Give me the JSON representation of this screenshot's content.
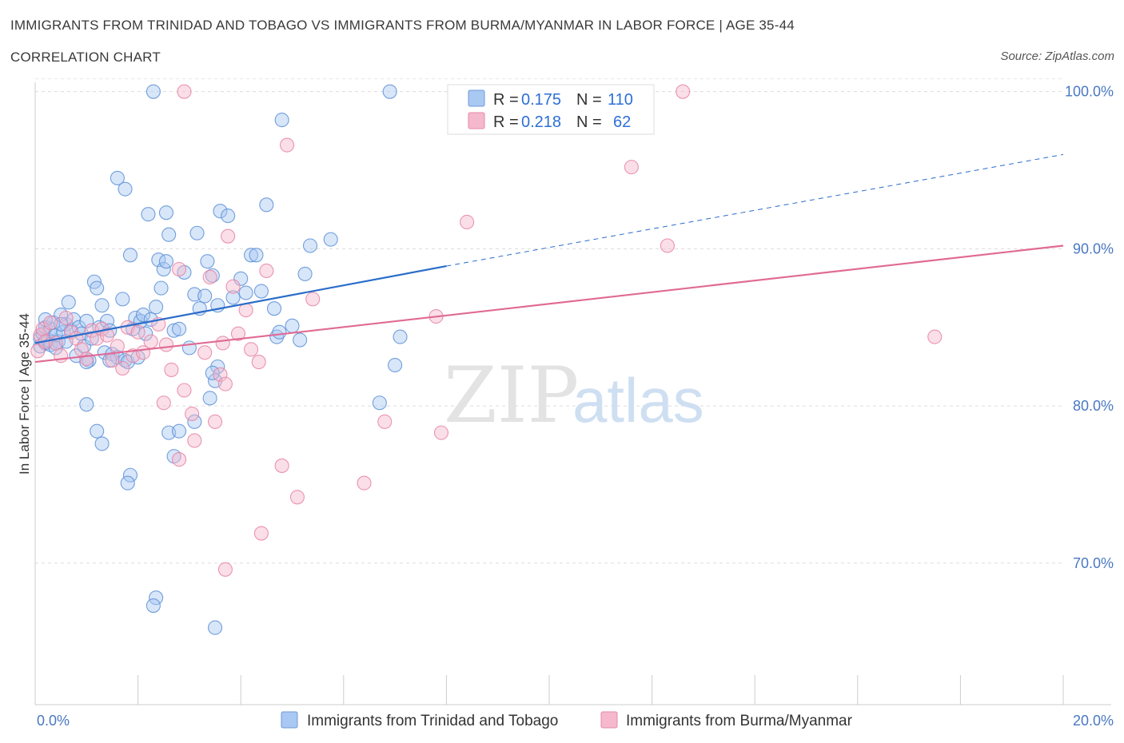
{
  "header": {
    "title": "IMMIGRANTS FROM TRINIDAD AND TOBAGO VS IMMIGRANTS FROM BURMA/MYANMAR IN LABOR FORCE | AGE 35-44",
    "subtitle": "CORRELATION CHART",
    "source": "Source: ZipAtlas.com"
  },
  "watermark": {
    "zip": "ZIP",
    "atlas": "atlas"
  },
  "legend": {
    "r_label": "R =",
    "n_label": "N =",
    "rows": [
      {
        "r": "0.175",
        "n": "110",
        "color": "#a9c8f2"
      },
      {
        "r": "0.218",
        "n": "62",
        "color": "#f5b8cc"
      }
    ]
  },
  "chart_data": {
    "type": "scatter",
    "xlabel": "",
    "ylabel": "In Labor Force | Age 35-44",
    "xlim": [
      0,
      20
    ],
    "ylim": [
      61,
      101
    ],
    "x_tick_labels": [
      "0.0%",
      "20.0%"
    ],
    "y_ticks": [
      70,
      80,
      90,
      100
    ],
    "y_tick_labels": [
      "70.0%",
      "80.0%",
      "90.0%",
      "100.0%"
    ],
    "grid": true,
    "legend_position": "bottom",
    "series": [
      {
        "name": "Immigrants from Trinidad and Tobago",
        "color": "#5b8fd6",
        "fill": "#a9c8f2",
        "trend": {
          "x0": 0,
          "y0": 84.0,
          "x1": 8.0,
          "y1": 88.9,
          "dash_x1": 20,
          "dash_y1": 96.0,
          "line_color": "#2a6cc9"
        },
        "points": [
          [
            0.1,
            84.3
          ],
          [
            0.1,
            83.8
          ],
          [
            0.15,
            84.6
          ],
          [
            0.2,
            84.0
          ],
          [
            0.2,
            85.0
          ],
          [
            0.25,
            84.2
          ],
          [
            0.3,
            84.9
          ],
          [
            0.3,
            83.9
          ],
          [
            0.35,
            85.3
          ],
          [
            0.4,
            84.5
          ],
          [
            0.45,
            84.1
          ],
          [
            0.5,
            85.8
          ],
          [
            0.55,
            84.7
          ],
          [
            0.6,
            85.2
          ],
          [
            0.65,
            86.6
          ],
          [
            0.7,
            84.8
          ],
          [
            0.75,
            85.5
          ],
          [
            0.8,
            83.2
          ],
          [
            0.85,
            85.0
          ],
          [
            0.9,
            84.6
          ],
          [
            0.95,
            83.8
          ],
          [
            1.0,
            85.4
          ],
          [
            1.05,
            82.9
          ],
          [
            1.1,
            84.3
          ],
          [
            1.15,
            87.9
          ],
          [
            1.2,
            87.5
          ],
          [
            1.25,
            85.0
          ],
          [
            1.3,
            86.4
          ],
          [
            1.35,
            83.4
          ],
          [
            1.4,
            85.4
          ],
          [
            1.45,
            84.8
          ],
          [
            1.5,
            83.3
          ],
          [
            1.6,
            83.1
          ],
          [
            1.7,
            86.8
          ],
          [
            1.75,
            82.9
          ],
          [
            1.8,
            82.8
          ],
          [
            1.85,
            89.6
          ],
          [
            1.9,
            84.9
          ],
          [
            1.95,
            85.6
          ],
          [
            2.0,
            83.1
          ],
          [
            2.05,
            85.4
          ],
          [
            2.1,
            85.8
          ],
          [
            2.2,
            92.2
          ],
          [
            2.25,
            85.5
          ],
          [
            2.35,
            86.3
          ],
          [
            2.4,
            89.3
          ],
          [
            2.45,
            87.5
          ],
          [
            2.5,
            88.7
          ],
          [
            2.55,
            89.2
          ],
          [
            2.6,
            90.9
          ],
          [
            2.7,
            84.8
          ],
          [
            2.8,
            84.9
          ],
          [
            2.9,
            88.5
          ],
          [
            3.0,
            83.7
          ],
          [
            3.1,
            87.1
          ],
          [
            3.2,
            86.2
          ],
          [
            3.3,
            87.0
          ],
          [
            3.35,
            89.2
          ],
          [
            3.45,
            88.3
          ],
          [
            3.55,
            86.4
          ],
          [
            3.6,
            92.4
          ],
          [
            3.75,
            92.1
          ],
          [
            3.85,
            86.9
          ],
          [
            4.0,
            88.1
          ],
          [
            4.1,
            87.2
          ],
          [
            4.2,
            89.6
          ],
          [
            4.3,
            89.6
          ],
          [
            4.4,
            87.3
          ],
          [
            4.5,
            92.8
          ],
          [
            4.65,
            86.2
          ],
          [
            4.7,
            84.4
          ],
          [
            4.75,
            84.7
          ],
          [
            5.0,
            85.1
          ],
          [
            5.15,
            84.2
          ],
          [
            5.25,
            88.4
          ],
          [
            5.35,
            90.2
          ],
          [
            5.75,
            90.6
          ],
          [
            6.9,
            100.0
          ],
          [
            7.0,
            82.6
          ],
          [
            7.1,
            84.4
          ],
          [
            2.3,
            100.0
          ],
          [
            4.8,
            98.2
          ],
          [
            1.6,
            94.5
          ],
          [
            1.75,
            93.8
          ],
          [
            2.55,
            92.3
          ],
          [
            3.15,
            91.0
          ],
          [
            1.0,
            80.1
          ],
          [
            1.2,
            78.4
          ],
          [
            1.3,
            77.6
          ],
          [
            1.85,
            75.6
          ],
          [
            1.8,
            75.1
          ],
          [
            2.6,
            78.3
          ],
          [
            2.8,
            78.4
          ],
          [
            2.7,
            76.8
          ],
          [
            3.1,
            79.0
          ],
          [
            3.4,
            80.5
          ],
          [
            3.5,
            81.6
          ],
          [
            3.55,
            82.5
          ],
          [
            3.45,
            82.1
          ],
          [
            2.35,
            67.8
          ],
          [
            2.3,
            67.3
          ],
          [
            3.5,
            65.9
          ],
          [
            6.7,
            80.2
          ],
          [
            0.2,
            85.5
          ],
          [
            0.4,
            83.7
          ],
          [
            0.6,
            84.1
          ],
          [
            1.0,
            82.8
          ],
          [
            1.45,
            82.9
          ],
          [
            2.15,
            84.6
          ],
          [
            0.5,
            85.2
          ]
        ]
      },
      {
        "name": "Immigrants from Burma/Myanmar",
        "color": "#e883a5",
        "fill": "#f5b8cc",
        "trend": {
          "x0": 0,
          "y0": 82.8,
          "x1": 20,
          "y1": 90.2,
          "line_color": "#e06a94"
        },
        "points": [
          [
            0.05,
            83.5
          ],
          [
            0.1,
            84.5
          ],
          [
            0.15,
            84.9
          ],
          [
            0.2,
            84.1
          ],
          [
            0.3,
            85.3
          ],
          [
            0.4,
            84.0
          ],
          [
            0.5,
            83.2
          ],
          [
            0.6,
            85.6
          ],
          [
            0.7,
            84.7
          ],
          [
            0.8,
            84.3
          ],
          [
            0.9,
            83.6
          ],
          [
            1.0,
            83.0
          ],
          [
            1.1,
            84.8
          ],
          [
            1.2,
            84.3
          ],
          [
            1.3,
            84.9
          ],
          [
            1.4,
            84.5
          ],
          [
            1.5,
            82.9
          ],
          [
            1.6,
            83.8
          ],
          [
            1.7,
            82.4
          ],
          [
            1.8,
            85.0
          ],
          [
            1.9,
            83.2
          ],
          [
            2.0,
            84.7
          ],
          [
            2.1,
            83.4
          ],
          [
            2.25,
            84.1
          ],
          [
            2.4,
            85.2
          ],
          [
            2.55,
            83.9
          ],
          [
            2.65,
            82.3
          ],
          [
            2.8,
            88.7
          ],
          [
            2.9,
            81.0
          ],
          [
            3.05,
            79.5
          ],
          [
            3.1,
            77.8
          ],
          [
            3.3,
            83.4
          ],
          [
            3.4,
            88.2
          ],
          [
            3.5,
            79.0
          ],
          [
            3.6,
            82.0
          ],
          [
            3.7,
            81.4
          ],
          [
            3.75,
            90.8
          ],
          [
            3.85,
            87.6
          ],
          [
            3.95,
            84.6
          ],
          [
            4.1,
            86.1
          ],
          [
            4.2,
            83.6
          ],
          [
            4.35,
            82.8
          ],
          [
            4.5,
            88.6
          ],
          [
            4.8,
            76.2
          ],
          [
            4.9,
            96.6
          ],
          [
            5.1,
            74.2
          ],
          [
            5.4,
            86.8
          ],
          [
            6.4,
            75.1
          ],
          [
            6.8,
            79.0
          ],
          [
            7.9,
            78.3
          ],
          [
            7.8,
            85.7
          ],
          [
            8.4,
            91.7
          ],
          [
            11.6,
            95.2
          ],
          [
            12.3,
            90.2
          ],
          [
            17.5,
            84.4
          ],
          [
            12.6,
            100.0
          ],
          [
            2.9,
            100.0
          ],
          [
            2.5,
            80.2
          ],
          [
            2.8,
            76.6
          ],
          [
            4.4,
            71.9
          ],
          [
            3.7,
            69.6
          ],
          [
            3.65,
            84.0
          ]
        ]
      }
    ]
  }
}
